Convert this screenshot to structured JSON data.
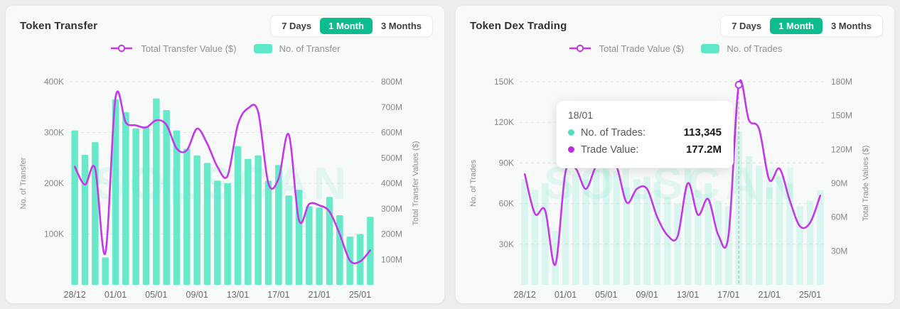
{
  "watermark": "SOLSCAN",
  "colors": {
    "teal": "#5FE8C7",
    "purple": "#C438E8",
    "green": "#0EBD8F"
  },
  "tabs": {
    "options": [
      "7 Days",
      "1 Month",
      "3 Months"
    ],
    "selected": "1 Month"
  },
  "tooltip": {
    "date": "18/01",
    "rows": [
      {
        "label": "No. of Trades:",
        "value": "113,345"
      },
      {
        "label": "Trade Value:",
        "value": "177.2M"
      }
    ]
  },
  "chart_data": [
    {
      "type": "bar+line",
      "title": "Token Transfer",
      "n_points": 30,
      "x_tick_labels": [
        "28/12",
        "01/01",
        "05/01",
        "09/01",
        "13/01",
        "17/01",
        "21/01",
        "25/01"
      ],
      "x_tick_every": 4,
      "left_axis": {
        "label": "No. of Transfer",
        "unit": "K",
        "max": 400,
        "tick_values": [
          100,
          200,
          300,
          400
        ],
        "tick_labels": [
          "100K",
          "200K",
          "300K",
          "400K"
        ]
      },
      "right_axis": {
        "label": "Total Transfer Values ($)",
        "unit": "M",
        "max": 800,
        "tick_values": [
          100,
          200,
          300,
          400,
          500,
          600,
          700,
          800
        ],
        "tick_labels": [
          "100M",
          "200M",
          "300M",
          "400M",
          "500M",
          "600M",
          "700M",
          "800M"
        ]
      },
      "series": [
        {
          "name": "No. of Transfer",
          "type": "bar",
          "axis": "left",
          "unit": "K",
          "values": [
            304,
            256,
            281,
            54,
            365,
            340,
            308,
            311,
            367,
            344,
            304,
            268,
            255,
            240,
            205,
            200,
            273,
            248,
            255,
            205,
            236,
            176,
            187,
            155,
            152,
            173,
            137,
            95,
            100,
            134
          ]
        },
        {
          "name": "Total Transfer Value ($)",
          "type": "line",
          "axis": "right",
          "unit": "M",
          "values": [
            465,
            395,
            458,
            125,
            737,
            640,
            628,
            620,
            648,
            630,
            537,
            530,
            615,
            556,
            465,
            430,
            630,
            695,
            680,
            400,
            418,
            592,
            255,
            318,
            313,
            288,
            200,
            96,
            92,
            136
          ]
        }
      ]
    },
    {
      "type": "bar+line",
      "title": "Token Dex Trading",
      "n_points": 30,
      "x_tick_labels": [
        "28/12",
        "01/01",
        "05/01",
        "09/01",
        "13/01",
        "17/01",
        "21/01",
        "25/01"
      ],
      "x_tick_every": 4,
      "left_axis": {
        "label": "No. of Trades",
        "unit": "K",
        "max": 150,
        "tick_values": [
          30,
          60,
          90,
          120,
          150
        ],
        "tick_labels": [
          "30K",
          "60K",
          "90K",
          "120K",
          "150K"
        ]
      },
      "right_axis": {
        "label": "Total Trade Values ($)",
        "unit": "M",
        "max": 180,
        "tick_values": [
          30,
          60,
          90,
          120,
          150,
          180
        ],
        "tick_labels": [
          "30M",
          "60M",
          "90M",
          "120M",
          "150M",
          "180M"
        ]
      },
      "series": [
        {
          "name": "No. of Trades",
          "type": "bar",
          "axis": "left",
          "unit": "K",
          "values": [
            78,
            70,
            75,
            40,
            80,
            82,
            78,
            85,
            88,
            84,
            72,
            78,
            80,
            76,
            65,
            60,
            92,
            70,
            75,
            62,
            58,
            113.345,
            95,
            88,
            72,
            80,
            75,
            58,
            62,
            70
          ]
        },
        {
          "name": "Total Trade Value ($)",
          "type": "line",
          "axis": "right",
          "unit": "M",
          "values": [
            98,
            63,
            66,
            18,
            100,
            103,
            85,
            105,
            108,
            105,
            73,
            85,
            85,
            60,
            44,
            43,
            90,
            62,
            76,
            44,
            44,
            177.2,
            146,
            138,
            93,
            103,
            75,
            52,
            55,
            79
          ]
        }
      ],
      "highlight": {
        "index": 21,
        "date": "18/01"
      }
    }
  ]
}
